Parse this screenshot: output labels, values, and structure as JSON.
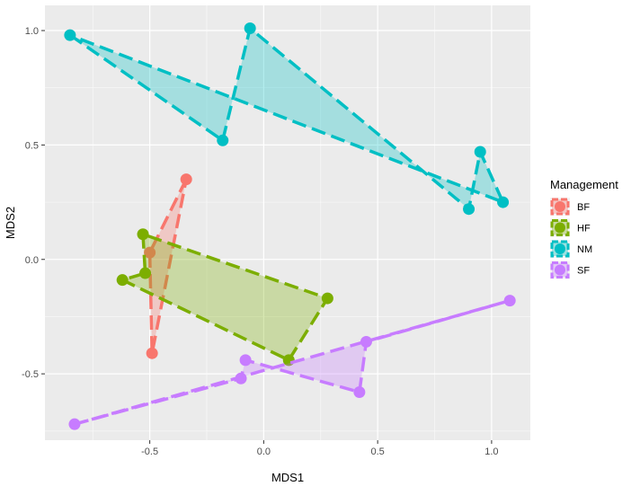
{
  "chart_data": {
    "type": "scatter",
    "title": "",
    "xlabel": "MDS1",
    "ylabel": "MDS2",
    "xlim": [
      -0.96,
      1.17
    ],
    "ylim": [
      -0.79,
      1.11
    ],
    "x_ticks": [
      -0.5,
      0.0,
      0.5,
      1.0
    ],
    "x_tick_labels": [
      "-0.5",
      "0.0",
      "0.5",
      "1.0"
    ],
    "y_ticks": [
      -0.5,
      0.0,
      0.5,
      1.0
    ],
    "y_tick_labels": [
      "-0.5",
      "0.0",
      "0.5",
      "1.0"
    ],
    "grid": true,
    "background": "#ebebeb",
    "legend": {
      "title": "Management",
      "placement": "right"
    },
    "series": [
      {
        "name": "BF",
        "color": "#F8766D",
        "points": [
          [
            -0.34,
            0.35
          ],
          [
            -0.5,
            0.03
          ],
          [
            -0.49,
            -0.41
          ]
        ]
      },
      {
        "name": "HF",
        "color": "#7CAE00",
        "points": [
          [
            -0.53,
            0.11
          ],
          [
            -0.52,
            -0.06
          ],
          [
            -0.62,
            -0.09
          ],
          [
            0.11,
            -0.44
          ],
          [
            0.28,
            -0.17
          ]
        ]
      },
      {
        "name": "NM",
        "color": "#00BFC4",
        "points": [
          [
            -0.85,
            0.98
          ],
          [
            -0.18,
            0.52
          ],
          [
            -0.06,
            1.01
          ],
          [
            0.9,
            0.22
          ],
          [
            0.95,
            0.47
          ],
          [
            1.05,
            0.25
          ]
        ]
      },
      {
        "name": "SF",
        "color": "#C77CFF",
        "points": [
          [
            -0.83,
            -0.72
          ],
          [
            -0.1,
            -0.52
          ],
          [
            -0.08,
            -0.44
          ],
          [
            0.42,
            -0.58
          ],
          [
            0.45,
            -0.36
          ],
          [
            1.08,
            -0.18
          ]
        ]
      }
    ]
  }
}
